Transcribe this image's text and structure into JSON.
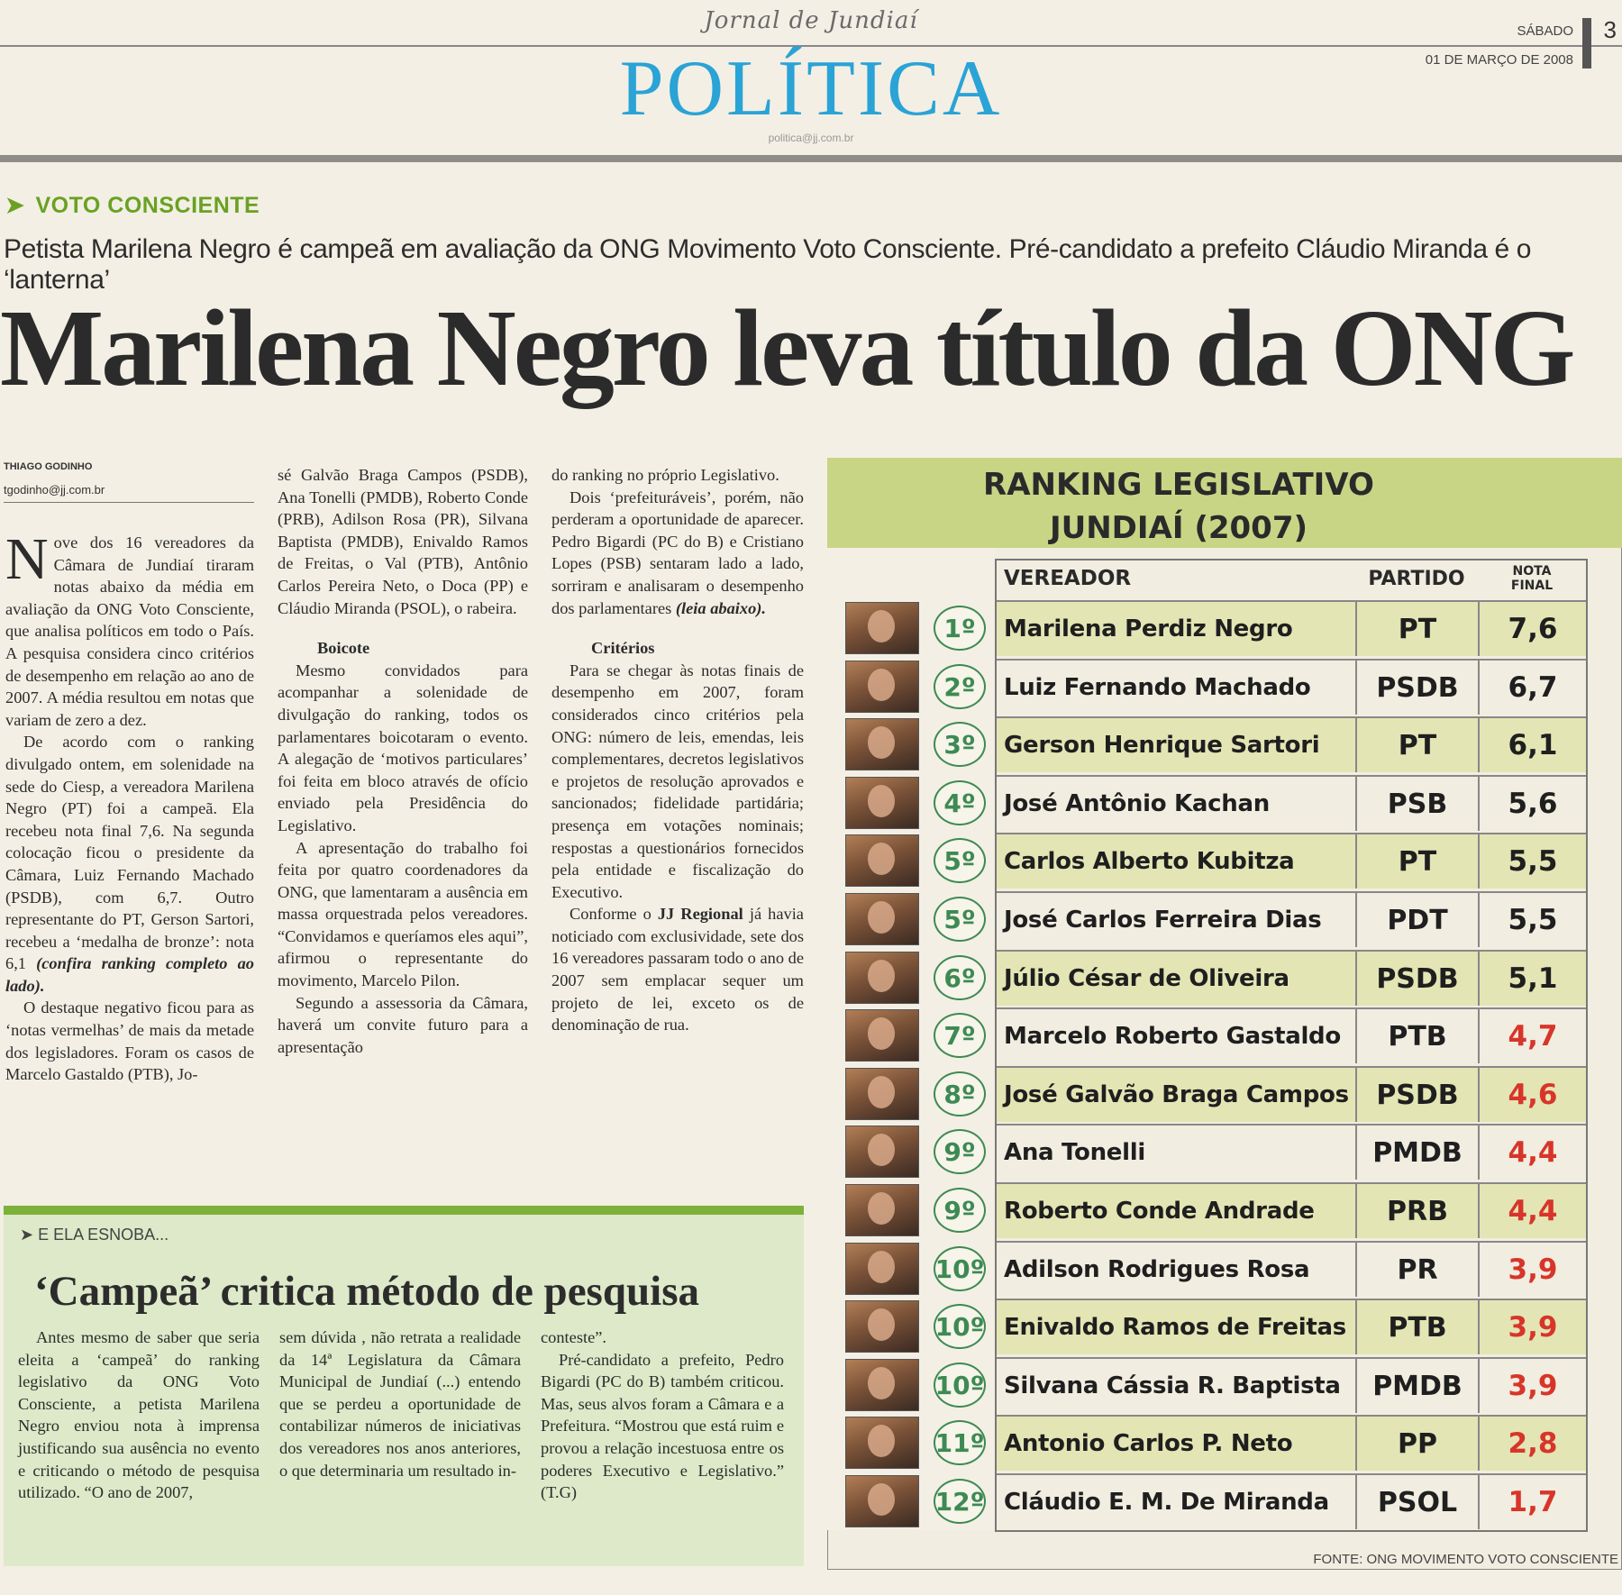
{
  "header": {
    "masthead": "Jornal de Jundiaí",
    "section": "POLÍTICA",
    "section_email": "politica@jj.com.br",
    "day": "SÁBADO",
    "page": "3",
    "date": "01 DE MARÇO DE 2008"
  },
  "article": {
    "kicker": "VOTO CONSCIENTE",
    "subhead": "Petista Marilena Negro é campeã em avaliação da ONG Movimento Voto Consciente. Pré-candidato a prefeito Cláudio Miranda é o ‘lanterna’",
    "headline": "Marilena Negro leva título da ONG",
    "author": "THIAGO GODINHO",
    "author_email": "tgodinho@jj.com.br",
    "dropcap": "N",
    "col1_p1": "ove dos 16 vereadores da Câmara de Jundiaí tiraram notas abaixo da média em avaliação da ONG Voto Consciente, que analisa políticos em todo o País. A pesquisa considera cinco critérios de desempenho em relação ao ano de 2007. A média resultou em notas que variam de zero a dez.",
    "col1_p2": "De acordo com o ranking divulgado ontem, em solenidade na sede do Ciesp, a vereadora Marilena Negro (PT) foi a campeã. Ela recebeu nota final 7,6. Na segunda colocação ficou o presidente da Câmara, Luiz Fernando Machado (PSDB), com 6,7. Outro representante do PT, Gerson Sartori, recebeu a ‘medalha de bronze’: nota 6,1",
    "col1_p2_em": "(confira ranking completo ao lado).",
    "col1_p3": "O destaque negativo ficou para as ‘notas vermelhas’ de mais da metade dos legisladores. Foram os casos de Marcelo Gastaldo (PTB), Jo-",
    "col2_p1": "sé Galvão Braga Campos (PSDB), Ana Tonelli (PMDB), Roberto Conde (PRB), Adilson Rosa (PR), Silvana Baptista (PMDB), Enivaldo Ramos de Freitas, o Val (PTB), Antônio Carlos Pereira Neto, o Doca (PP) e Cláudio Miranda (PSOL), o rabeira.",
    "col2_sub": "Boicote",
    "col2_p2": "Mesmo convidados para acompanhar a solenidade de divulgação do ranking, todos os parlamentares boicotaram o evento. A alegação de ‘motivos particulares’ foi feita em bloco através de ofício enviado pela Presidência do Legislativo.",
    "col2_p3": "A apresentação do trabalho foi feita por quatro coordenadores da ONG, que lamentaram a ausência em massa orquestrada pelos vereadores. “Convidamos e queríamos eles aqui”, afirmou o representante do movimento, Marcelo Pilon.",
    "col2_p4": "Segundo a assessoria da Câmara, haverá um convite futuro para a apresentação",
    "col3_p1": "do ranking no próprio Legislativo.",
    "col3_p2": "Dois ‘prefeituráveis’, porém, não perderam a oportunidade de aparecer. Pedro Bigardi (PC do B) e Cristiano Lopes (PSB) sentaram lado a lado, sorriram e analisaram o desempenho dos parlamentares",
    "col3_p2_em": "(leia abaixo).",
    "col3_sub": "Critérios",
    "col3_p3": "Para se chegar às notas finais de desempenho em 2007, foram considerados cinco critérios pela ONG: número de leis, emendas, leis complementares, decretos legislativos e projetos de resolução aprovados e sancionados; fidelidade partidária; presença em votações nominais; respostas a questionários fornecidos pela entidade e fiscalização do Executivo.",
    "col3_p4_a": "Conforme o",
    "col3_p4_b": "JJ Regional",
    "col3_p4_c": "já havia noticiado com exclusividade, sete dos 16 vereadores passaram todo o ano de 2007 sem emplacar sequer um projeto de lei, exceto os de denominação de rua."
  },
  "sidebar": {
    "kicker": "E ELA ESNOBA...",
    "title": "‘Campeã’ critica método de pesquisa",
    "col1": "Antes mesmo de saber que seria eleita a ‘campeã’ do ranking legislativo da ONG Voto Consciente, a petista Marilena Negro enviou nota à imprensa justificando sua ausência no evento e criticando o método de pesquisa utilizado. “O ano de 2007,",
    "col2": "sem dúvida , não retrata a realidade da 14ª Legislatura da Câmara Municipal de Jundiaí (...) entendo que se perdeu a oportunidade de contabilizar números de iniciativas dos vereadores nos anos anteriores, o que determinaria um resultado in-",
    "col3_p1": "conteste”.",
    "col3_p2": "Pré-candidato a prefeito, Pedro Bigardi (PC do B) também criticou. Mas, seus alvos foram a Câmara e a Prefeitura. “Mostrou que está ruim e provou a relação incestuosa entre os poderes Executivo e Legislativo.” (T.G)"
  },
  "ranking": {
    "title_line1": "RANKING LEGISLATIVO",
    "title_line2": "JUNDIAÍ (2007)",
    "col_vereador": "VEREADOR",
    "col_partido": "PARTIDO",
    "col_nota_1": "NOTA",
    "col_nota_2": "FINAL",
    "source": "FONTE: ONG MOVIMENTO VOTO CONSCIENTE",
    "good_color": "#1f1f1f",
    "bad_color": "#d8352a",
    "rows": [
      {
        "pos": "1º",
        "name": "Marilena Perdiz Negro",
        "party": "PT",
        "grade": "7,6",
        "red": false
      },
      {
        "pos": "2º",
        "name": "Luiz Fernando Machado",
        "party": "PSDB",
        "grade": "6,7",
        "red": false
      },
      {
        "pos": "3º",
        "name": "Gerson Henrique Sartori",
        "party": "PT",
        "grade": "6,1",
        "red": false
      },
      {
        "pos": "4º",
        "name": "José Antônio Kachan",
        "party": "PSB",
        "grade": "5,6",
        "red": false
      },
      {
        "pos": "5º",
        "name": "Carlos Alberto Kubitza",
        "party": "PT",
        "grade": "5,5",
        "red": false
      },
      {
        "pos": "5º",
        "name": "José Carlos Ferreira Dias",
        "party": "PDT",
        "grade": "5,5",
        "red": false
      },
      {
        "pos": "6º",
        "name": "Júlio César de Oliveira",
        "party": "PSDB",
        "grade": "5,1",
        "red": false
      },
      {
        "pos": "7º",
        "name": "Marcelo Roberto Gastaldo",
        "party": "PTB",
        "grade": "4,7",
        "red": true
      },
      {
        "pos": "8º",
        "name": "José Galvão Braga Campos",
        "party": "PSDB",
        "grade": "4,6",
        "red": true
      },
      {
        "pos": "9º",
        "name": "Ana Tonelli",
        "party": "PMDB",
        "grade": "4,4",
        "red": true
      },
      {
        "pos": "9º",
        "name": "Roberto Conde Andrade",
        "party": "PRB",
        "grade": "4,4",
        "red": true
      },
      {
        "pos": "10º",
        "name": "Adilson Rodrigues Rosa",
        "party": "PR",
        "grade": "3,9",
        "red": true
      },
      {
        "pos": "10º",
        "name": "Enivaldo Ramos de Freitas",
        "party": "PTB",
        "grade": "3,9",
        "red": true
      },
      {
        "pos": "10º",
        "name": "Silvana Cássia R. Baptista",
        "party": "PMDB",
        "grade": "3,9",
        "red": true
      },
      {
        "pos": "11º",
        "name": "Antonio Carlos P. Neto",
        "party": "PP",
        "grade": "2,8",
        "red": true
      },
      {
        "pos": "12º",
        "name": "Cláudio E. M. De Miranda",
        "party": "PSOL",
        "grade": "1,7",
        "red": true
      }
    ]
  }
}
